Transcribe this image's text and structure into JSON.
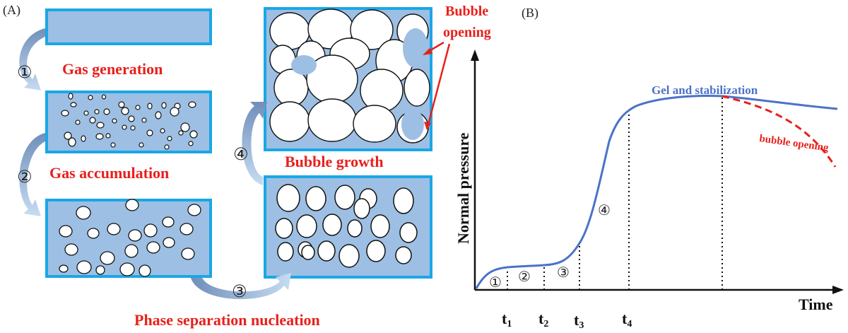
{
  "panels": {
    "a_label": "(A)",
    "b_label": "(B)"
  },
  "process": {
    "steps": [
      {
        "number": "①",
        "label": "Gas generation"
      },
      {
        "number": "②",
        "label": "Gas accumulation"
      },
      {
        "number": "③",
        "label": "Phase separation nucleation"
      },
      {
        "number": "④",
        "label": "Bubble growth"
      }
    ],
    "callout_line1": "Bubble",
    "callout_line2": "opening"
  },
  "colors": {
    "box_fill": "#9dbfe4",
    "box_border": "#1aa7e6",
    "arrow": "#7e9fc9",
    "label_red": "#e8201c",
    "curve_blue": "#4a72c8"
  },
  "chart_data": {
    "type": "line",
    "ylabel": "Normal pressure",
    "xlabel": "Time",
    "ticks": [
      {
        "base": "t",
        "sub": "1"
      },
      {
        "base": "t",
        "sub": "2"
      },
      {
        "base": "t",
        "sub": "3"
      },
      {
        "base": "t",
        "sub": "4"
      }
    ],
    "stage_markers": [
      "①",
      "②",
      "③",
      "④"
    ],
    "series": [
      {
        "name": "Gel and stabilization",
        "color": "#4a72c8",
        "style": "solid"
      },
      {
        "name": "bubble opening",
        "color": "#e8201c",
        "style": "dashed"
      }
    ]
  }
}
